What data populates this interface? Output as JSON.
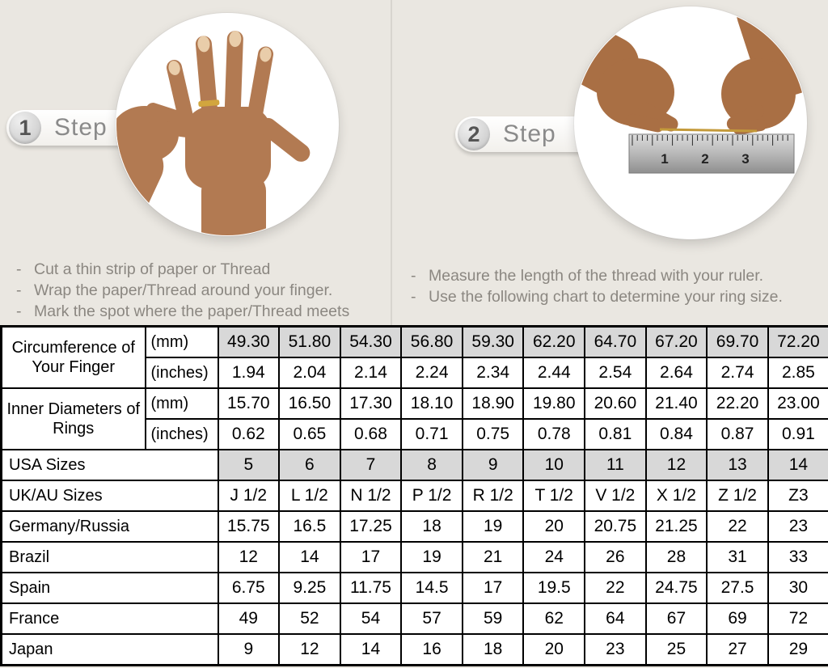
{
  "page": {
    "title": "Ring Size Guide"
  },
  "bullet_char": "-",
  "colors": {
    "background": "#eae7e1",
    "divider": "#d8d5cf",
    "badge_text": "#8a8a8a",
    "instruction_text": "#8b8781",
    "table_border": "#000000",
    "shaded_cell": "#d8d8d8",
    "cell_background": "#ffffff",
    "skin_tone": "#b27a52",
    "ring_gold": "#d2a63e",
    "thread_gold": "#c49a3a",
    "ruler_silver": "#b8b8b8"
  },
  "steps": [
    {
      "number": "1",
      "label": "Step",
      "instructions": [
        "Cut a thin strip of paper or Thread",
        "Wrap the paper/Thread around your finger.",
        "Mark the spot where the paper/Thread meets"
      ]
    },
    {
      "number": "2",
      "label": "Step",
      "instructions": [
        "Measure the length of the thread with your ruler.",
        "Use the following chart to determine your ring size."
      ]
    }
  ],
  "ruler": {
    "numbers": [
      "1",
      "2",
      "3"
    ]
  },
  "size_chart": {
    "rows": [
      {
        "group": "Circumference of Your Finger",
        "group_span": 2,
        "unit": "(mm)",
        "shaded": true,
        "values": [
          "49.30",
          "51.80",
          "54.30",
          "56.80",
          "59.30",
          "62.20",
          "64.70",
          "67.20",
          "69.70",
          "72.20"
        ]
      },
      {
        "unit": "(inches)",
        "shaded": false,
        "values": [
          "1.94",
          "2.04",
          "2.14",
          "2.24",
          "2.34",
          "2.44",
          "2.54",
          "2.64",
          "2.74",
          "2.85"
        ]
      },
      {
        "group": "Inner Diameters of Rings",
        "group_span": 2,
        "unit": "(mm)",
        "shaded": false,
        "values": [
          "15.70",
          "16.50",
          "17.30",
          "18.10",
          "18.90",
          "19.80",
          "20.60",
          "21.40",
          "22.20",
          "23.00"
        ]
      },
      {
        "unit": "(inches)",
        "shaded": false,
        "values": [
          "0.62",
          "0.65",
          "0.68",
          "0.71",
          "0.75",
          "0.78",
          "0.81",
          "0.84",
          "0.87",
          "0.91"
        ]
      },
      {
        "label": "USA Sizes",
        "shaded": true,
        "values": [
          "5",
          "6",
          "7",
          "8",
          "9",
          "10",
          "11",
          "12",
          "13",
          "14"
        ]
      },
      {
        "label": "UK/AU Sizes",
        "shaded": false,
        "values": [
          "J 1/2",
          "L 1/2",
          "N 1/2",
          "P 1/2",
          "R 1/2",
          "T 1/2",
          "V 1/2",
          "X 1/2",
          "Z 1/2",
          "Z3"
        ]
      },
      {
        "label": "Germany/Russia",
        "shaded": false,
        "values": [
          "15.75",
          "16.5",
          "17.25",
          "18",
          "19",
          "20",
          "20.75",
          "21.25",
          "22",
          "23"
        ]
      },
      {
        "label": "Brazil",
        "shaded": false,
        "values": [
          "12",
          "14",
          "17",
          "19",
          "21",
          "24",
          "26",
          "28",
          "31",
          "33"
        ]
      },
      {
        "label": "Spain",
        "shaded": false,
        "values": [
          "6.75",
          "9.25",
          "11.75",
          "14.5",
          "17",
          "19.5",
          "22",
          "24.75",
          "27.5",
          "30"
        ]
      },
      {
        "label": "France",
        "shaded": false,
        "values": [
          "49",
          "52",
          "54",
          "57",
          "59",
          "62",
          "64",
          "67",
          "69",
          "72"
        ]
      },
      {
        "label": "Japan",
        "shaded": false,
        "values": [
          "9",
          "12",
          "14",
          "16",
          "18",
          "20",
          "23",
          "25",
          "27",
          "29"
        ]
      }
    ]
  }
}
